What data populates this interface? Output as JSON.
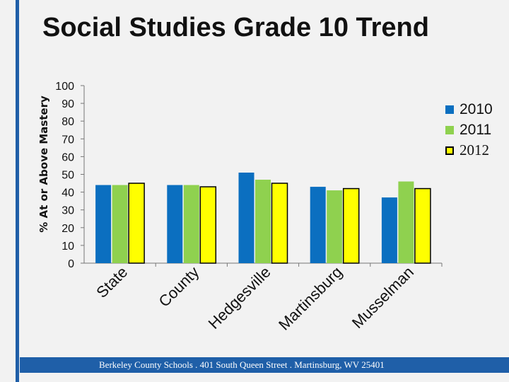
{
  "title": "Social Studies Grade 10 Trend",
  "footer_text": "Berkeley County Schools . 401 South Queen Street . Martinsburg, WV  25401",
  "colors": {
    "s2010": "#0b6fc0",
    "s2011": "#8fd14f",
    "s2012": "#ffff00",
    "rule": "#1f5fa8"
  },
  "chart_data": {
    "type": "bar",
    "title": "Social Studies Grade 10 Trend",
    "xlabel": "",
    "ylabel": "% At or Above Mastery",
    "ylim": [
      0,
      100
    ],
    "yticks": [
      "100",
      "90",
      "80",
      "70",
      "60",
      "50",
      "40",
      "30",
      "20",
      "10",
      "0"
    ],
    "grid": false,
    "legend_position": "right",
    "categories": [
      "State",
      "County",
      "Hedgesville",
      "Martinsburg",
      "Musselman"
    ],
    "series": [
      {
        "name": "2010",
        "values": [
          44,
          44,
          51,
          43,
          37
        ]
      },
      {
        "name": "2011",
        "values": [
          44,
          44,
          47,
          41,
          46
        ]
      },
      {
        "name": "2012",
        "values": [
          45,
          43,
          45,
          42,
          42
        ]
      }
    ]
  }
}
